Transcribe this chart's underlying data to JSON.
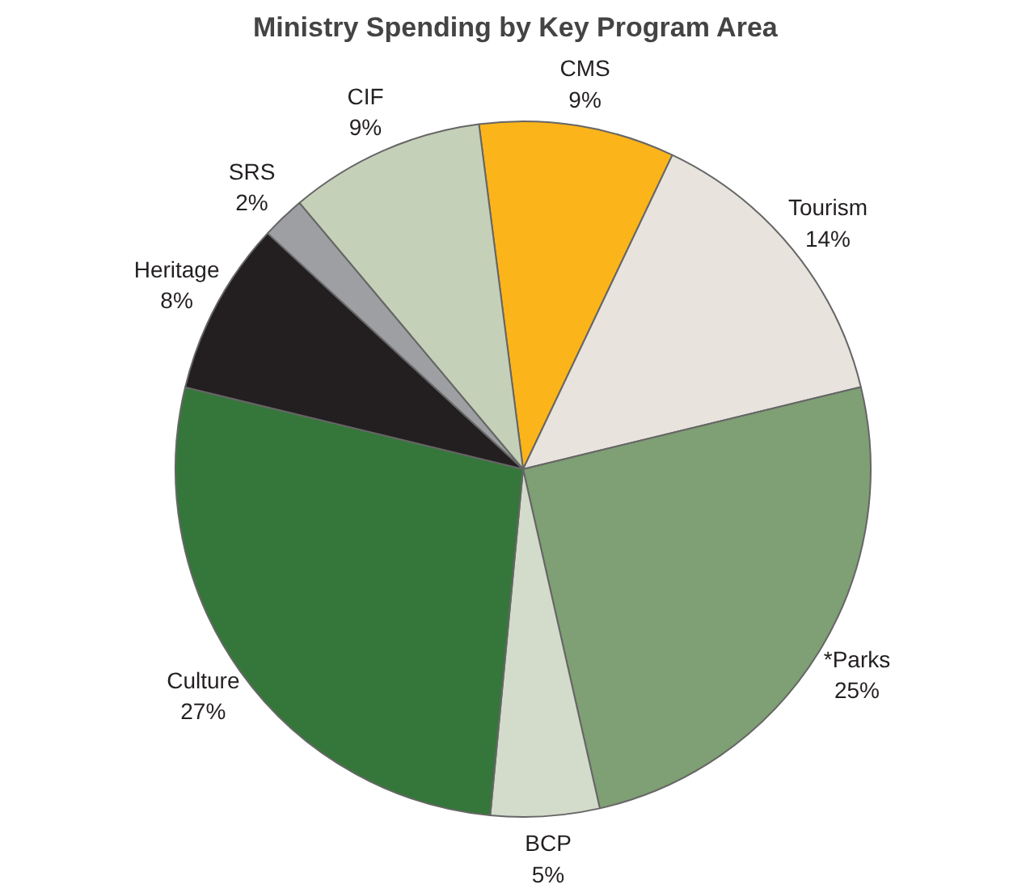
{
  "chart_data": {
    "type": "pie",
    "title": "Ministry Spending by Key Program Area",
    "categories": [
      "CMS",
      "Tourism",
      "*Parks",
      "BCP",
      "Culture",
      "Heritage",
      "SRS",
      "CIF"
    ],
    "values": [
      9,
      14,
      25,
      5,
      27,
      8,
      2,
      9
    ],
    "colors": [
      "#fbb41a",
      "#e8e3dd",
      "#7f9f74",
      "#d3dccb",
      "#35773a",
      "#231f20",
      "#9d9fa2",
      "#c5d0b8"
    ],
    "value_labels": [
      "9%",
      "14%",
      "25%",
      "5%",
      "27%",
      "8%",
      "2%",
      "9%"
    ]
  }
}
